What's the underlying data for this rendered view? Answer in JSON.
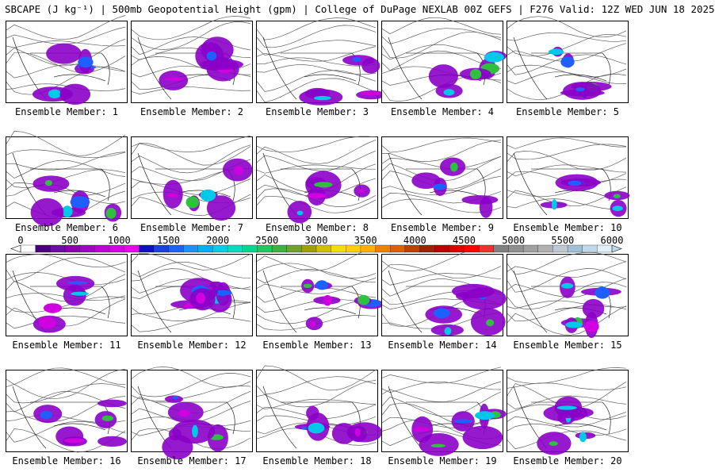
{
  "title": "SBCAPE (J kg⁻¹) | 500mb Geopotential Height (gpm) | College of DuPage NEXLAB 00Z GEFS | F276 Valid: 12Z WED JUN 18 2025",
  "panels": [
    "Ensemble Member: 1",
    "Ensemble Member: 2",
    "Ensemble Member: 3",
    "Ensemble Member: 4",
    "Ensemble Member: 5",
    "Ensemble Member: 6",
    "Ensemble Member: 7",
    "Ensemble Member: 8",
    "Ensemble Member: 9",
    "Ensemble Member: 10",
    "Ensemble Member: 11",
    "Ensemble Member: 12",
    "Ensemble Member: 13",
    "Ensemble Member: 14",
    "Ensemble Member: 15",
    "Ensemble Member: 16",
    "Ensemble Member: 17",
    "Ensemble Member: 18",
    "Ensemble Member: 19",
    "Ensemble Member: 20"
  ],
  "colorbar": {
    "ticks": [
      "0",
      "500",
      "1000",
      "1500",
      "2000",
      "2500",
      "3000",
      "3500",
      "4000",
      "4500",
      "5000",
      "5500",
      "6000"
    ],
    "range": [
      0,
      6000
    ],
    "colors": [
      "#ffffff",
      "#4b0082",
      "#6a0dad",
      "#8b00b5",
      "#a400c8",
      "#c000d8",
      "#d800e8",
      "#f000f0",
      "#1010c8",
      "#1e40e0",
      "#2060ff",
      "#1e90ff",
      "#00b0f0",
      "#00d0e0",
      "#00e0c0",
      "#00d890",
      "#20c860",
      "#40b040",
      "#70a030",
      "#a0a000",
      "#d0c000",
      "#f0e000",
      "#ffd000",
      "#ffb000",
      "#f08000",
      "#e06000",
      "#c04000",
      "#a02000",
      "#c00000",
      "#e00000",
      "#ff0000",
      "#f03030",
      "#808080",
      "#909090",
      "#a0a0a0",
      "#b0b0b0",
      "#c0c8d0",
      "#a0c0d8",
      "#c0d8e8",
      "#e0f0f8"
    ]
  },
  "colors": {
    "cape_low": "#8b00c8",
    "cape_mid": "#d000e0",
    "cape_blue": "#1e60ff",
    "cape_cyan": "#00c8e8",
    "cape_green": "#30c040",
    "cape_yellow": "#f0e000",
    "contour": "#606060"
  }
}
